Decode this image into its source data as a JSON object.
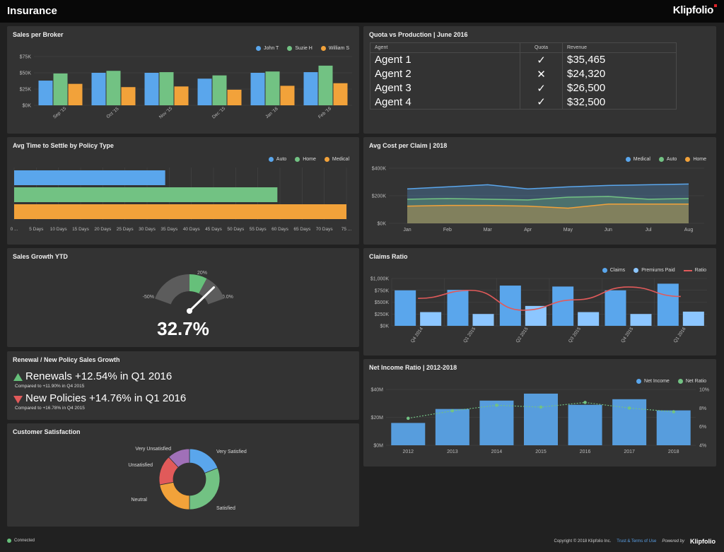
{
  "header": {
    "title": "Insurance",
    "brand": "Klipfolio"
  },
  "colors": {
    "blue": "#5aa6ec",
    "green": "#72c283",
    "orange": "#f2a23a",
    "red": "#e15a5a",
    "lightblue": "#8cc6ff"
  },
  "sales_per_broker": {
    "title": "Sales per Broker",
    "legend": [
      "John T",
      "Suzie H",
      "William S"
    ],
    "y_ticks": [
      "$75K",
      "$50K",
      "$25K",
      "$0K"
    ],
    "chart_data": {
      "type": "bar",
      "categories": [
        "Sep '15",
        "Oct '15",
        "Nov '15",
        "Dec '15",
        "Jan '16",
        "Feb '16"
      ],
      "ylim": [
        0,
        75000
      ],
      "series": [
        {
          "name": "John T",
          "values": [
            38000,
            50000,
            50000,
            41000,
            50000,
            51000
          ]
        },
        {
          "name": "Suzie H",
          "values": [
            49000,
            53000,
            51000,
            46000,
            52000,
            61000
          ]
        },
        {
          "name": "William S",
          "values": [
            33000,
            28000,
            29000,
            24000,
            30000,
            34000
          ]
        }
      ]
    }
  },
  "quota": {
    "title": "Quota vs Production | June 2016",
    "headers": [
      "Agent",
      "Quota",
      "Revenue"
    ],
    "rows": [
      {
        "agent": "Agent 1",
        "quota": "✓",
        "met": true,
        "revenue": "$35,465"
      },
      {
        "agent": "Agent 2",
        "quota": "✕",
        "met": false,
        "revenue": "$24,320"
      },
      {
        "agent": "Agent 3",
        "quota": "✓",
        "met": true,
        "revenue": "$26,500"
      },
      {
        "agent": "Agent 4",
        "quota": "✓",
        "met": true,
        "revenue": "$32,500"
      }
    ]
  },
  "avg_time": {
    "title": "Avg Time to Settle by Policy Type",
    "legend": [
      "Auto",
      "Home",
      "Medical"
    ],
    "x_ticks": [
      "0 ...",
      "5 Days",
      "10 Days",
      "15 Days",
      "20 Days",
      "25 Days",
      "30 Days",
      "35 Days",
      "40 Days",
      "45 Days",
      "50 Days",
      "55 Days",
      "60 Days",
      "65 Days",
      "70 Days",
      "75 ..."
    ],
    "chart_data": {
      "type": "bar",
      "orientation": "horizontal",
      "categories": [
        "Auto",
        "Home",
        "Medical"
      ],
      "values": [
        35,
        61,
        77
      ],
      "xlim": [
        0,
        77
      ]
    }
  },
  "avg_cost": {
    "title": "Avg Cost per Claim | 2018",
    "legend": [
      "Medical",
      "Auto",
      "Home"
    ],
    "y_ticks": [
      "$400K",
      "$200K",
      "$0K"
    ],
    "chart_data": {
      "type": "area",
      "x": [
        "Jan",
        "Feb",
        "Mar",
        "Apr",
        "May",
        "Jun",
        "Jul",
        "Aug"
      ],
      "ylim": [
        0,
        400000
      ],
      "series": [
        {
          "name": "Medical",
          "values": [
            250000,
            265000,
            280000,
            250000,
            265000,
            275000,
            280000,
            285000
          ]
        },
        {
          "name": "Auto",
          "values": [
            175000,
            180000,
            175000,
            170000,
            190000,
            195000,
            175000,
            180000
          ]
        },
        {
          "name": "Home",
          "values": [
            125000,
            130000,
            130000,
            125000,
            110000,
            140000,
            140000,
            140000
          ]
        }
      ]
    }
  },
  "sales_growth": {
    "title": "Sales Growth YTD",
    "value": "32.7%",
    "min_label": "-50%",
    "max_label": "50.0%",
    "target_label": "20%",
    "gauge_value": 32.7,
    "gauge_min": -50,
    "gauge_max": 50,
    "gauge_target": 20
  },
  "renewal": {
    "title": "Renewal / New Policy Sales Growth",
    "renewals": "Renewals +12.54% in Q1 2016",
    "renewals_sub": "Compared to +11.90% in Q4 2015",
    "new_policies": "New Policies +14.76% in Q1 2016",
    "new_policies_sub": "Compared to +16.78% in Q4 2015"
  },
  "satisfaction": {
    "title": "Customer Satisfaction",
    "chart_data": {
      "type": "pie",
      "donut": true,
      "categories": [
        "Very Satisfied",
        "Satisfied",
        "Neutral",
        "Unsatisfied",
        "Very Unsatisfied"
      ],
      "values": [
        19,
        31,
        22,
        16,
        12
      ],
      "colors": [
        "#5aa6ec",
        "#72c283",
        "#f2a23a",
        "#e15a5a",
        "#a070b8"
      ]
    }
  },
  "claims_ratio": {
    "title": "Claims Ratio",
    "legend": [
      "Claims",
      "Premiums Paid",
      "Ratio"
    ],
    "y_ticks": [
      "$1,000K",
      "$750K",
      "$500K",
      "$250K",
      "$0K"
    ],
    "chart_data": {
      "type": "bar",
      "categories": [
        "Q4 2014",
        "Q1 2015",
        "Q2 2015",
        "Q3 2015",
        "Q4 2015",
        "Q1 2016"
      ],
      "ylim": [
        0,
        1000000
      ],
      "series": [
        {
          "name": "Claims",
          "values": [
            750000,
            760000,
            850000,
            830000,
            750000,
            890000
          ]
        },
        {
          "name": "Premiums Paid",
          "values": [
            290000,
            250000,
            420000,
            290000,
            250000,
            300000
          ]
        },
        {
          "name": "Ratio",
          "values": [
            0.58,
            0.75,
            0.33,
            0.55,
            0.82,
            0.62
          ]
        }
      ]
    }
  },
  "net_income": {
    "title": "Net Income Ratio | 2012-2018",
    "legend": [
      "Net Income",
      "Net Ratio"
    ],
    "y_ticks": [
      "$40M",
      "$20M",
      "$0M"
    ],
    "y2_ticks": [
      "10%",
      "8%",
      "6%",
      "4%"
    ],
    "chart_data": {
      "type": "bar",
      "categories": [
        "2012",
        "2013",
        "2014",
        "2015",
        "2016",
        "2017",
        "2018"
      ],
      "ylim": [
        0,
        40000000
      ],
      "y2lim": [
        4,
        10
      ],
      "series": [
        {
          "name": "Net Income",
          "values": [
            16000000,
            26000000,
            32000000,
            37000000,
            29000000,
            33000000,
            25000000
          ]
        },
        {
          "name": "Net Ratio",
          "values": [
            6.9,
            7.7,
            8.3,
            8.1,
            8.6,
            8.0,
            7.6
          ]
        }
      ]
    }
  },
  "footer": {
    "status": "Connected",
    "copyright": "Copyright © 2018 Klipfolio Inc.",
    "terms": "Trust & Terms of Use",
    "powered": "Powered by",
    "brand": "Klipfolio"
  }
}
